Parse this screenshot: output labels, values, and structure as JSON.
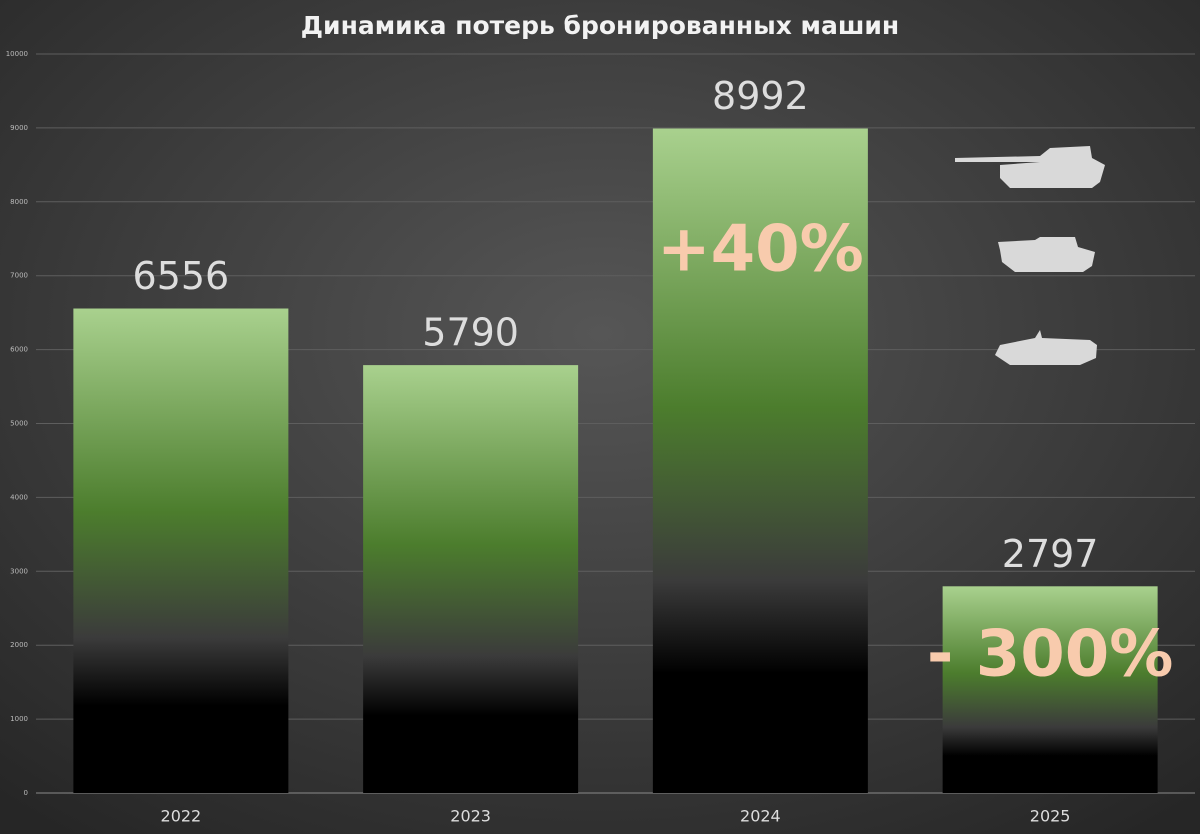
{
  "chart_data": {
    "type": "bar",
    "title": "Динамика потерь бронированных машин",
    "categories": [
      "2022",
      "2023",
      "2024",
      "2025"
    ],
    "values": [
      6556,
      5790,
      8992,
      2797
    ],
    "ylim": [
      0,
      10000
    ],
    "yticks": [
      0,
      1000,
      2000,
      3000,
      4000,
      5000,
      6000,
      7000,
      8000,
      9000,
      10000
    ],
    "grid": true,
    "annotations": [
      "+40%",
      "- 300%"
    ]
  }
}
